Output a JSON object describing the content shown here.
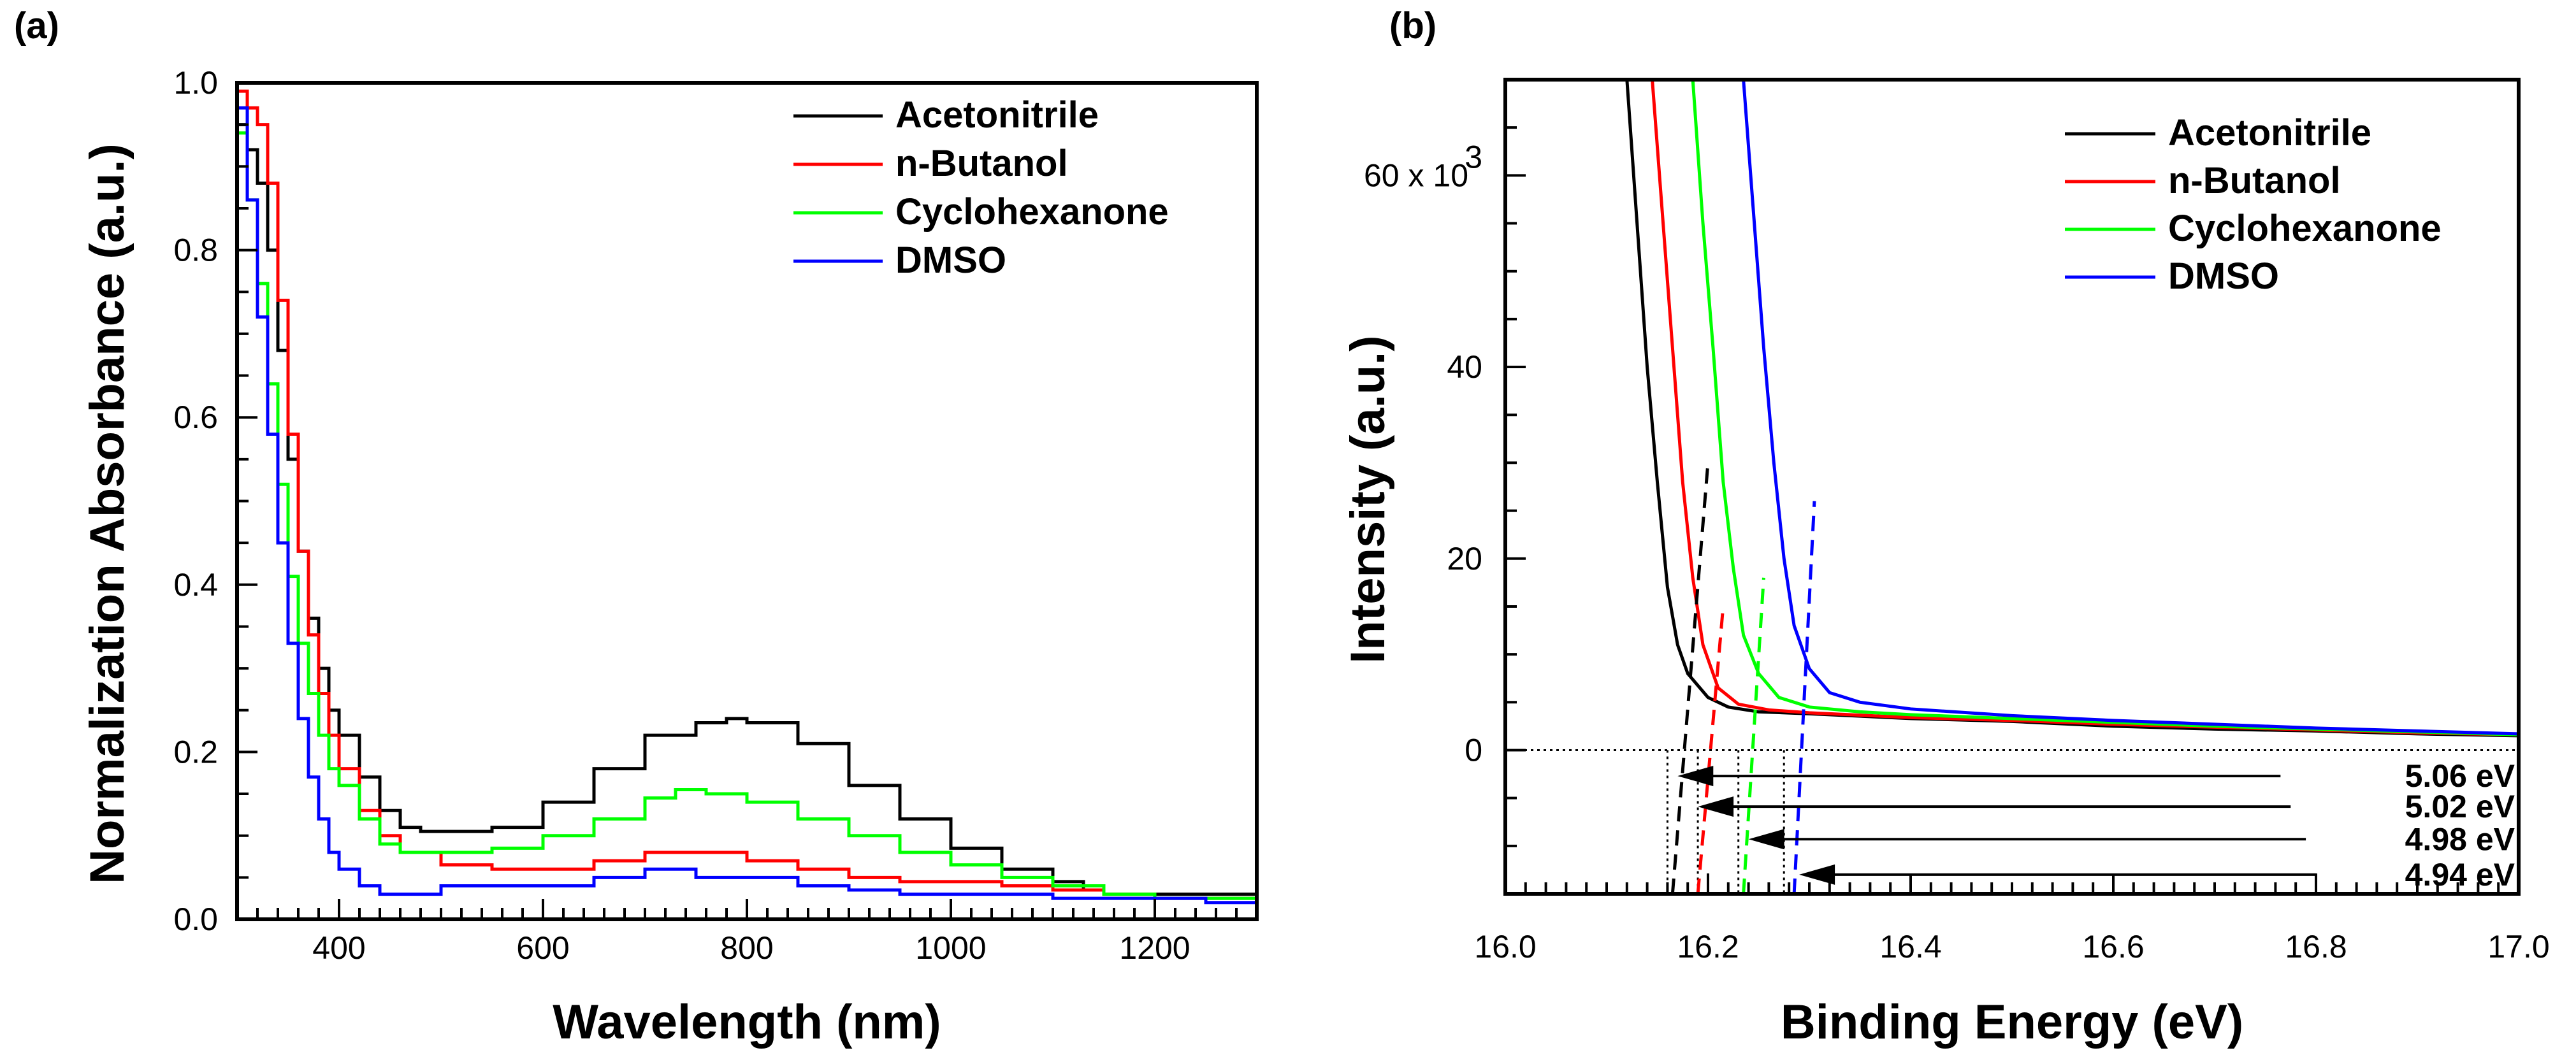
{
  "chart_data": [
    {
      "panel": "(a)",
      "type": "line",
      "title": "",
      "xlabel": "Wavelength (nm)",
      "ylabel": "Normalization Absorbance (a.u.)",
      "xlim": [
        300,
        1300
      ],
      "ylim": [
        0,
        1.0
      ],
      "xticks": [
        400,
        600,
        800,
        1000,
        1200
      ],
      "xtick_labels": [
        "400",
        "600",
        "800",
        "1000",
        "1200"
      ],
      "yticks": [
        0.0,
        0.2,
        0.4,
        0.6,
        0.8,
        1.0
      ],
      "ytick_labels": [
        "0.0",
        "0.2",
        "0.4",
        "0.6",
        "0.8",
        "1.0"
      ],
      "grid": false,
      "legend_position": "top-right",
      "series": [
        {
          "name": "Acetonitrile",
          "color": "#000000",
          "x": [
            300,
            310,
            320,
            330,
            340,
            350,
            360,
            370,
            380,
            390,
            400,
            420,
            440,
            460,
            480,
            500,
            550,
            600,
            650,
            700,
            750,
            780,
            800,
            850,
            900,
            950,
            1000,
            1050,
            1100,
            1130,
            1150,
            1200,
            1250,
            1300
          ],
          "y": [
            0.95,
            0.92,
            0.88,
            0.8,
            0.68,
            0.55,
            0.44,
            0.36,
            0.3,
            0.25,
            0.22,
            0.17,
            0.13,
            0.11,
            0.105,
            0.105,
            0.11,
            0.14,
            0.18,
            0.22,
            0.235,
            0.24,
            0.235,
            0.21,
            0.16,
            0.12,
            0.085,
            0.06,
            0.045,
            0.035,
            0.03,
            0.03,
            0.03,
            0.03
          ]
        },
        {
          "name": "n-Butanol",
          "color": "#ff0000",
          "x": [
            300,
            310,
            320,
            330,
            340,
            350,
            360,
            370,
            380,
            390,
            400,
            420,
            440,
            460,
            500,
            550,
            600,
            650,
            700,
            750,
            800,
            850,
            900,
            950,
            1000,
            1050,
            1100,
            1150,
            1200,
            1250,
            1300
          ],
          "y": [
            0.99,
            0.97,
            0.95,
            0.88,
            0.74,
            0.58,
            0.44,
            0.34,
            0.27,
            0.22,
            0.18,
            0.13,
            0.1,
            0.08,
            0.065,
            0.06,
            0.06,
            0.07,
            0.08,
            0.08,
            0.07,
            0.06,
            0.05,
            0.045,
            0.045,
            0.04,
            0.035,
            0.03,
            0.025,
            0.025,
            0.02
          ]
        },
        {
          "name": "Cyclohexanone",
          "color": "#00ff00",
          "x": [
            300,
            310,
            320,
            330,
            340,
            350,
            360,
            370,
            380,
            390,
            400,
            420,
            440,
            460,
            500,
            550,
            600,
            650,
            700,
            730,
            760,
            800,
            850,
            900,
            950,
            1000,
            1050,
            1100,
            1150,
            1200,
            1250,
            1300
          ],
          "y": [
            0.94,
            0.86,
            0.76,
            0.64,
            0.52,
            0.41,
            0.33,
            0.27,
            0.22,
            0.18,
            0.16,
            0.12,
            0.09,
            0.08,
            0.08,
            0.085,
            0.1,
            0.12,
            0.145,
            0.155,
            0.15,
            0.14,
            0.12,
            0.1,
            0.08,
            0.065,
            0.05,
            0.04,
            0.03,
            0.025,
            0.025,
            0.02
          ]
        },
        {
          "name": "DMSO",
          "color": "#0000ff",
          "x": [
            300,
            310,
            320,
            330,
            340,
            350,
            360,
            370,
            380,
            390,
            400,
            420,
            440,
            460,
            500,
            550,
            600,
            650,
            700,
            750,
            800,
            850,
            900,
            950,
            1000,
            1050,
            1100,
            1150,
            1200,
            1250,
            1300
          ],
          "y": [
            0.97,
            0.86,
            0.72,
            0.58,
            0.45,
            0.33,
            0.24,
            0.17,
            0.12,
            0.08,
            0.06,
            0.04,
            0.03,
            0.03,
            0.04,
            0.04,
            0.04,
            0.05,
            0.06,
            0.05,
            0.05,
            0.04,
            0.035,
            0.03,
            0.03,
            0.03,
            0.025,
            0.025,
            0.025,
            0.02,
            0.02
          ]
        }
      ]
    },
    {
      "panel": "(b)",
      "type": "line",
      "title": "",
      "xlabel": "Binding Energy (eV)",
      "ylabel": "Intensity (a.u.)",
      "xlim": [
        16.0,
        17.0
      ],
      "ylim": [
        -15000,
        70000
      ],
      "xticks": [
        16.0,
        16.2,
        16.4,
        16.6,
        16.8,
        17.0
      ],
      "xtick_labels": [
        "16.0",
        "16.2",
        "16.4",
        "16.6",
        "16.8",
        "17.0"
      ],
      "yticks": [
        0,
        20000,
        40000,
        60000
      ],
      "ytick_labels": [
        "0",
        "20",
        "40",
        "60"
      ],
      "y_multiplier_label": {
        "base": "60 x 10",
        "exponent": "3"
      },
      "grid": false,
      "legend_position": "top-right",
      "zero_reference_line": 0,
      "series": [
        {
          "name": "Acetonitrile",
          "color": "#000000",
          "x": [
            16.12,
            16.13,
            16.14,
            16.15,
            16.16,
            16.17,
            16.18,
            16.2,
            16.22,
            16.25,
            16.3,
            16.4,
            16.5,
            16.6,
            16.7,
            16.8,
            16.9,
            17.0
          ],
          "y": [
            70000,
            55000,
            40000,
            28000,
            17000,
            11000,
            8000,
            5500,
            4500,
            4000,
            3800,
            3300,
            3000,
            2500,
            2200,
            2000,
            1700,
            1500
          ]
        },
        {
          "name": "n-Butanol",
          "color": "#ff0000",
          "x": [
            16.145,
            16.155,
            16.165,
            16.175,
            16.185,
            16.195,
            16.21,
            16.23,
            16.26,
            16.3,
            16.4,
            16.5,
            16.6,
            16.7,
            16.8,
            16.9,
            17.0
          ],
          "y": [
            70000,
            56000,
            42000,
            28000,
            18000,
            11000,
            6500,
            4800,
            4200,
            3900,
            3400,
            3100,
            2700,
            2400,
            2100,
            1800,
            1600
          ]
        },
        {
          "name": "Cyclohexanone",
          "color": "#00ff00",
          "x": [
            16.185,
            16.195,
            16.205,
            16.215,
            16.225,
            16.235,
            16.25,
            16.27,
            16.3,
            16.35,
            16.4,
            16.5,
            16.6,
            16.7,
            16.8,
            16.9,
            17.0
          ],
          "y": [
            70000,
            55000,
            42000,
            28000,
            19000,
            12000,
            8000,
            5500,
            4500,
            4000,
            3700,
            3300,
            2900,
            2500,
            2200,
            1900,
            1600
          ]
        },
        {
          "name": "DMSO",
          "color": "#0000ff",
          "x": [
            16.235,
            16.245,
            16.255,
            16.265,
            16.275,
            16.285,
            16.3,
            16.32,
            16.35,
            16.4,
            16.5,
            16.6,
            16.7,
            16.8,
            16.9,
            17.0
          ],
          "y": [
            70000,
            56000,
            42000,
            30000,
            20000,
            13000,
            8500,
            6000,
            5000,
            4300,
            3600,
            3100,
            2700,
            2300,
            2000,
            1700
          ]
        }
      ],
      "extrapolation_lines": [
        {
          "color": "#000000",
          "x0": 16.165,
          "x1": 16.2,
          "y0": -15000,
          "y1": 30000
        },
        {
          "color": "#ff0000",
          "x0": 16.19,
          "x1": 16.215,
          "y0": -15000,
          "y1": 15000
        },
        {
          "color": "#00ff00",
          "x0": 16.235,
          "x1": 16.255,
          "y0": -15000,
          "y1": 18000
        },
        {
          "color": "#0000ff",
          "x0": 16.285,
          "x1": 16.305,
          "y0": -15000,
          "y1": 26000
        }
      ],
      "annotations": [
        {
          "text": "5.06 eV",
          "arrow_tip_x": 16.17,
          "arrow_y": -2700,
          "arrow_tail_x": 16.765
        },
        {
          "text": "5.02 eV",
          "arrow_tip_x": 16.19,
          "arrow_y": -5900,
          "arrow_tail_x": 16.775
        },
        {
          "text": "4.98 eV",
          "arrow_tip_x": 16.24,
          "arrow_y": -9300,
          "arrow_tail_x": 16.79
        },
        {
          "text": "4.94 eV",
          "arrow_tip_x": 16.29,
          "arrow_y": -13000,
          "arrow_tail_x": 16.8
        }
      ],
      "vertical_dotted_refs": [
        16.16,
        16.19,
        16.23,
        16.275
      ]
    }
  ]
}
